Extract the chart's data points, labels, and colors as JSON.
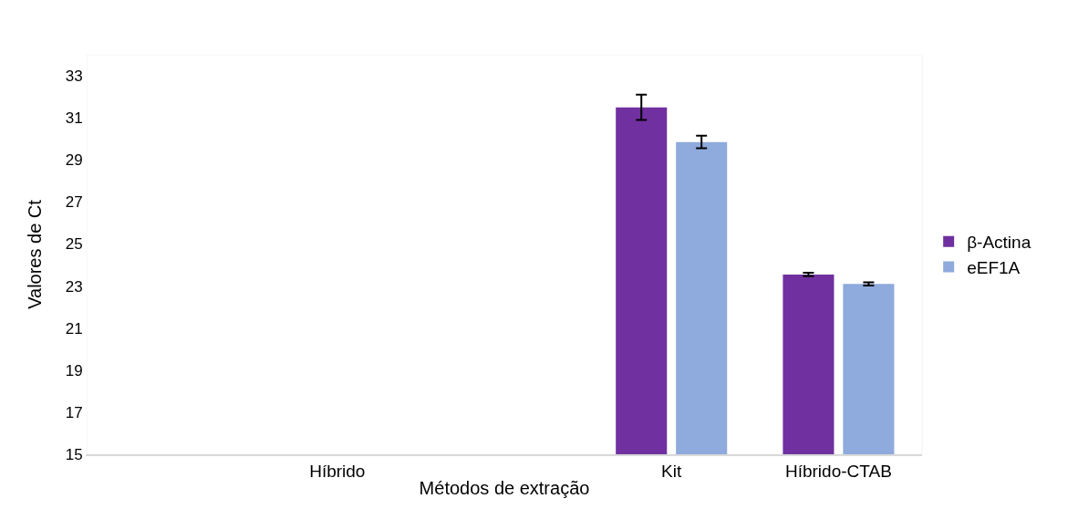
{
  "chart_data": {
    "type": "bar",
    "xlabel": "Métodos de extração",
    "ylabel": "Valores de Ct",
    "categories": [
      null,
      "Híbrido",
      null,
      "Kit",
      "Híbrido-CTAB"
    ],
    "series": [
      {
        "name": "β-Actina",
        "color": "#7030a0",
        "values": [
          null,
          null,
          null,
          31.5,
          23.55
        ],
        "errors": [
          null,
          null,
          null,
          0.6,
          0.08
        ]
      },
      {
        "name": "eEF1A",
        "color": "#8faadc",
        "values": [
          null,
          null,
          null,
          29.85,
          23.1
        ],
        "errors": [
          null,
          null,
          null,
          0.3,
          0.08
        ]
      }
    ],
    "ylim": [
      15,
      34
    ],
    "yticks": [
      15,
      17,
      19,
      21,
      23,
      25,
      27,
      29,
      31,
      33
    ],
    "grid": false,
    "legend": "right"
  }
}
